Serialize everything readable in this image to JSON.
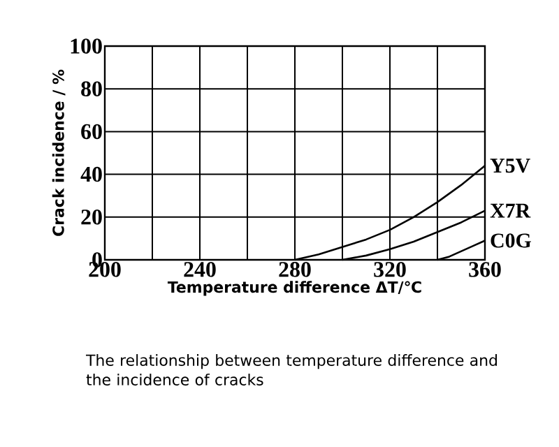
{
  "chart_data": {
    "type": "line",
    "xlabel": "Temperature difference ΔT/℃",
    "ylabel": "Crack incidence / %",
    "annotations": [
      "The relationship between temperature difference and the incidence of cracks"
    ],
    "xlim": [
      200,
      360
    ],
    "ylim": [
      0,
      100
    ],
    "xticks": [
      200,
      {
        "value": 220,
        "label": null
      },
      240,
      {
        "value": 260,
        "label": null
      },
      280,
      {
        "value": 300,
        "label": null
      },
      320,
      {
        "value": 340,
        "label": null
      },
      360
    ],
    "yticks": [
      0,
      20,
      40,
      60,
      80,
      100
    ],
    "grid": true,
    "legend": false,
    "series": [
      {
        "name": "Y5V",
        "color": "#000000",
        "x": [
          280,
          290,
          300,
          310,
          320,
          330,
          340,
          350,
          360
        ],
        "values": [
          0,
          2.5,
          6,
          9.5,
          14,
          20,
          27,
          35,
          44
        ]
      },
      {
        "name": "X7R",
        "color": "#000000",
        "x": [
          300,
          310,
          320,
          330,
          340,
          350,
          360
        ],
        "values": [
          0,
          2,
          5,
          8.5,
          13,
          17.5,
          23
        ]
      },
      {
        "name": "C0G",
        "color": "#000000",
        "x": [
          340,
          345,
          350,
          355,
          360
        ],
        "values": [
          0,
          1.5,
          4,
          6.5,
          9
        ]
      }
    ]
  }
}
